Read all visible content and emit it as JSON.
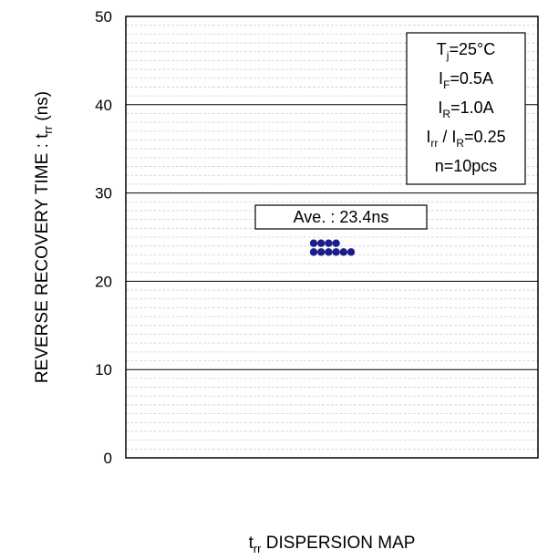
{
  "chart_data": {
    "type": "scatter",
    "title": "",
    "xlabel": {
      "base": "t",
      "sub": "rr",
      "rest": " DISPERSION MAP"
    },
    "ylabel": {
      "text": "REVERSE RECOVERY TIME : t",
      "sub": "rr",
      "unit": " (ns)"
    },
    "ylim": [
      0,
      50
    ],
    "yticks": [
      "0",
      "10",
      "20",
      "30",
      "40",
      "50"
    ],
    "grid": {
      "major_step": 10,
      "minor_step": 1
    },
    "average_label": "Ave. : 23.4ns",
    "conditions": [
      {
        "pre": "T",
        "sub": "j",
        "post": "=25°C"
      },
      {
        "pre": "I",
        "sub": "F",
        "post": "=0.5A"
      },
      {
        "pre": "I",
        "sub": "R",
        "post": "=1.0A"
      },
      {
        "pre": "I",
        "sub": "rr",
        "mid": " / I",
        "sub2": "R",
        "post": "=0.25"
      },
      {
        "pre": "n=10pcs",
        "sub": "",
        "post": ""
      }
    ],
    "points": [
      {
        "y": 24,
        "i": 0
      },
      {
        "y": 24,
        "i": 1
      },
      {
        "y": 24,
        "i": 2
      },
      {
        "y": 24,
        "i": 3
      },
      {
        "y": 23,
        "i": 0
      },
      {
        "y": 23,
        "i": 1
      },
      {
        "y": 23,
        "i": 2
      },
      {
        "y": 23,
        "i": 3
      },
      {
        "y": 23,
        "i": 4
      },
      {
        "y": 23,
        "i": 5
      }
    ],
    "marker_color": "#1a1f8c"
  }
}
